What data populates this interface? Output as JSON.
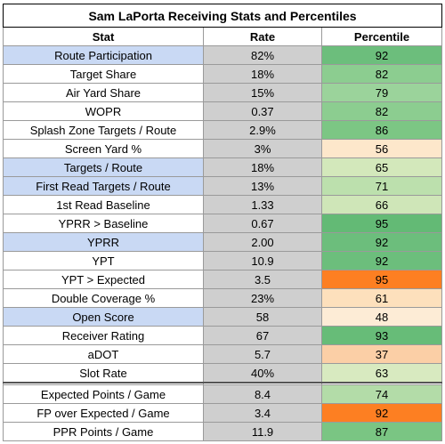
{
  "title": "Sam LaPorta Receiving Stats and Percentiles",
  "headers": {
    "stat": "Stat",
    "rate": "Rate",
    "percentile": "Percentile"
  },
  "colors": {
    "highlight_stat": "#c9d9f4",
    "rate_cell": "#cfcfcf",
    "orange_flag": "#fd7f22"
  },
  "rows": [
    {
      "stat": "Route Participation",
      "rate": "82%",
      "percentile": "92",
      "highlight": true,
      "pct_color": "#6cbe7c"
    },
    {
      "stat": "Target Share",
      "rate": "18%",
      "percentile": "82",
      "highlight": false,
      "pct_color": "#8ccd90"
    },
    {
      "stat": "Air Yard Share",
      "rate": "15%",
      "percentile": "79",
      "highlight": false,
      "pct_color": "#9bd39b"
    },
    {
      "stat": "WOPR",
      "rate": "0.37",
      "percentile": "82",
      "highlight": false,
      "pct_color": "#8ccd90"
    },
    {
      "stat": "Splash Zone Targets / Route",
      "rate": "2.9%",
      "percentile": "86",
      "highlight": false,
      "pct_color": "#7cc684"
    },
    {
      "stat": "Screen Yard %",
      "rate": "3%",
      "percentile": "56",
      "highlight": false,
      "pct_color": "#fde7cb"
    },
    {
      "stat": "Targets / Route",
      "rate": "18%",
      "percentile": "65",
      "highlight": true,
      "pct_color": "#d3e8bb"
    },
    {
      "stat": "First Read Targets / Route",
      "rate": "13%",
      "percentile": "71",
      "highlight": true,
      "pct_color": "#bce0ad"
    },
    {
      "stat": "1st Read Baseline",
      "rate": "1.33",
      "percentile": "66",
      "highlight": false,
      "pct_color": "#cfe6b8"
    },
    {
      "stat": "YPRR > Baseline",
      "rate": "0.67",
      "percentile": "95",
      "highlight": false,
      "pct_color": "#63ba75"
    },
    {
      "stat": "YPRR",
      "rate": "2.00",
      "percentile": "92",
      "highlight": true,
      "pct_color": "#6cbe7c"
    },
    {
      "stat": "YPT",
      "rate": "10.9",
      "percentile": "92",
      "highlight": false,
      "pct_color": "#6cbe7c"
    },
    {
      "stat": "YPT > Expected",
      "rate": "3.5",
      "percentile": "95",
      "highlight": false,
      "pct_color": "#fd7f22"
    },
    {
      "stat": "Double Coverage %",
      "rate": "23%",
      "percentile": "61",
      "highlight": false,
      "pct_color": "#fde0bc"
    },
    {
      "stat": "Open Score",
      "rate": "58",
      "percentile": "48",
      "highlight": true,
      "pct_color": "#fdecd6"
    },
    {
      "stat": "Receiver Rating",
      "rate": "67",
      "percentile": "93",
      "highlight": false,
      "pct_color": "#67bc78"
    },
    {
      "stat": "aDOT",
      "rate": "5.7",
      "percentile": "37",
      "highlight": false,
      "pct_color": "#fbcfa6"
    },
    {
      "stat": "Slot Rate",
      "rate": "40%",
      "percentile": "63",
      "highlight": false,
      "pct_color": "#d8eac0"
    },
    {
      "stat": "Expected Points / Game",
      "rate": "8.4",
      "percentile": "74",
      "highlight": false,
      "pct_color": "#b3dca8"
    },
    {
      "stat": "FP over Expected / Game",
      "rate": "3.4",
      "percentile": "92",
      "highlight": false,
      "pct_color": "#fd7f22"
    },
    {
      "stat": "PPR Points / Game",
      "rate": "11.9",
      "percentile": "87",
      "highlight": false,
      "pct_color": "#7ac583"
    }
  ]
}
